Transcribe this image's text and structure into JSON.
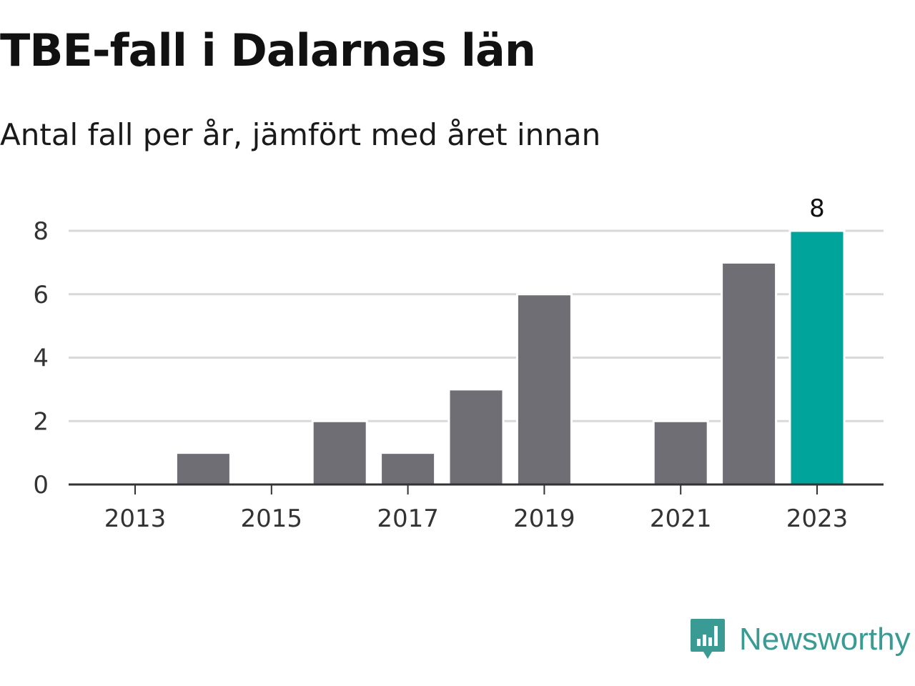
{
  "title": "TBE-fall i Dalarnas län",
  "subtitle": "Antal fall per år, jämfört med året innan",
  "brand": {
    "name": "Newsworthy",
    "icon": "newsworthy-logo-icon",
    "color": "#3a9a94"
  },
  "colors": {
    "bar": "#6f6e75",
    "highlight": "#00a49a",
    "grid": "#d9d9d9",
    "axis": "#333333"
  },
  "chart_data": {
    "type": "bar",
    "categories": [
      "2013",
      "2014",
      "2015",
      "2016",
      "2017",
      "2018",
      "2019",
      "2020",
      "2021",
      "2022",
      "2023"
    ],
    "values": [
      0,
      1,
      0,
      2,
      1,
      3,
      6,
      0,
      2,
      7,
      8
    ],
    "highlight_category": "2023",
    "data_labels": [
      {
        "category": "2023",
        "text": "8"
      }
    ],
    "x_tick_labels": [
      "2013",
      "2015",
      "2017",
      "2019",
      "2021",
      "2023"
    ],
    "y_ticks": [
      "0",
      "2",
      "4",
      "6",
      "8"
    ],
    "ylim": [
      0,
      8
    ],
    "xlabel": "",
    "ylabel": "",
    "grid": true,
    "legend": "none"
  }
}
